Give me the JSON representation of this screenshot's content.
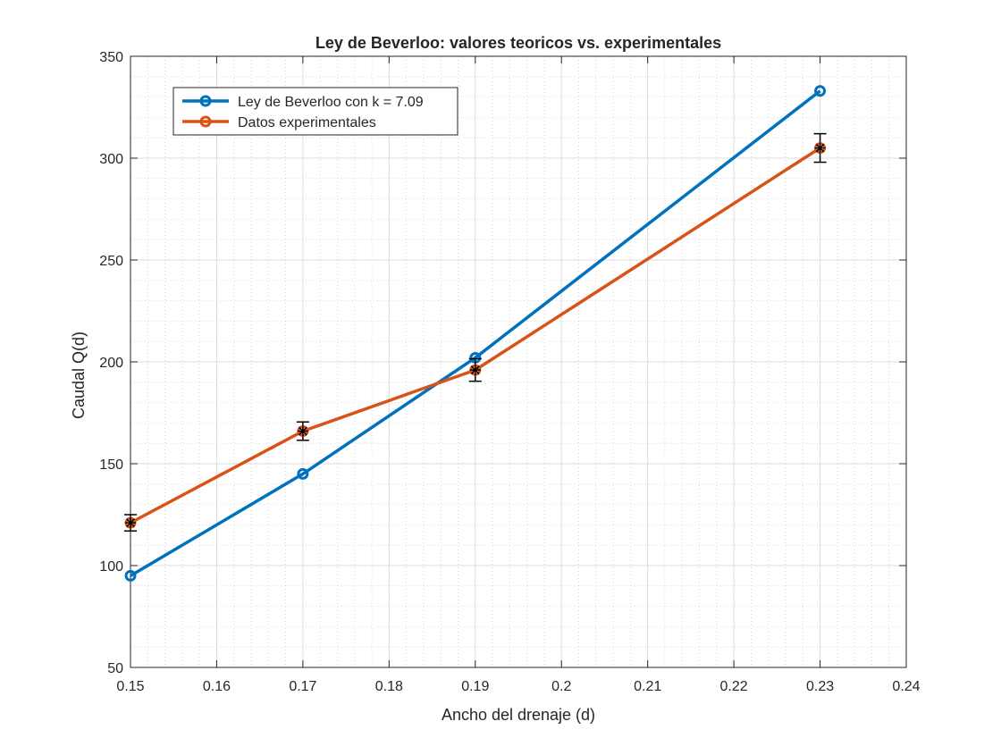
{
  "chart_data": {
    "type": "line",
    "title": "Ley de Beverloo: valores teoricos vs. experimentales",
    "xlabel": "Ancho del drenaje (d)",
    "ylabel": "Caudal Q(d)",
    "xlim": [
      0.15,
      0.24
    ],
    "ylim": [
      50,
      350
    ],
    "xticks": [
      0.15,
      0.16,
      0.17,
      0.18,
      0.19,
      0.2,
      0.21,
      0.22,
      0.23,
      0.24
    ],
    "xtick_labels": [
      "0.15",
      "0.16",
      "0.17",
      "0.18",
      "0.19",
      "0.2",
      "0.21",
      "0.22",
      "0.23",
      "0.24"
    ],
    "yticks": [
      50,
      100,
      150,
      200,
      250,
      300,
      350
    ],
    "ytick_labels": [
      "50",
      "100",
      "150",
      "200",
      "250",
      "300",
      "350"
    ],
    "grid": true,
    "minor_grid": true,
    "legend_position": "top-left",
    "series": [
      {
        "name": "Ley de Beverloo con k = 7.09",
        "color": "#0072BD",
        "marker": "circle",
        "x": [
          0.15,
          0.17,
          0.19,
          0.23
        ],
        "y": [
          95,
          145,
          202,
          333
        ]
      },
      {
        "name": "Datos experimentales",
        "color": "#D95319",
        "marker": "circle",
        "x": [
          0.15,
          0.17,
          0.19,
          0.23
        ],
        "y": [
          121,
          166,
          196,
          305
        ],
        "error": [
          4,
          4.5,
          5.5,
          7
        ],
        "error_color": "#000000",
        "error_marker": "asterisk"
      }
    ]
  }
}
